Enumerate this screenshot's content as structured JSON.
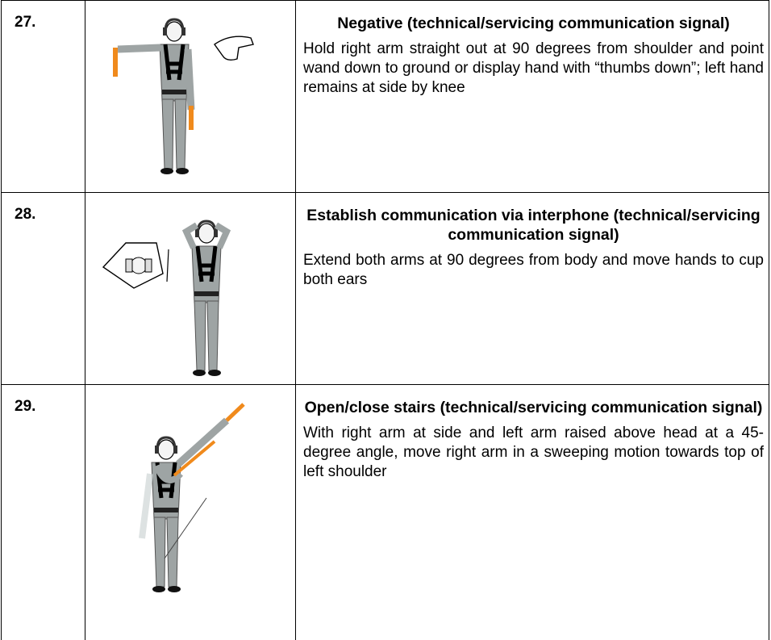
{
  "table": {
    "rows": [
      {
        "number": "27.",
        "title": "Negative (technical/servicing communication signal)",
        "description": "Hold right arm straight out at 90 degrees from shoulder and point wand down to ground or display hand with “thumbs down”; left hand remains at side by knee"
      },
      {
        "number": "28.",
        "title": "Establish communication via interphone (technical/servicing communication signal)",
        "description": "Extend both arms at 90 degrees from body and move hands to cup both ears"
      },
      {
        "number": "29.",
        "title": "Open/close stairs (technical/servicing communication signal)",
        "description": "With right arm at side and left arm raised above head at a 45-degree angle, move right arm in a sweeping motion towards top of left shoulder"
      }
    ]
  }
}
